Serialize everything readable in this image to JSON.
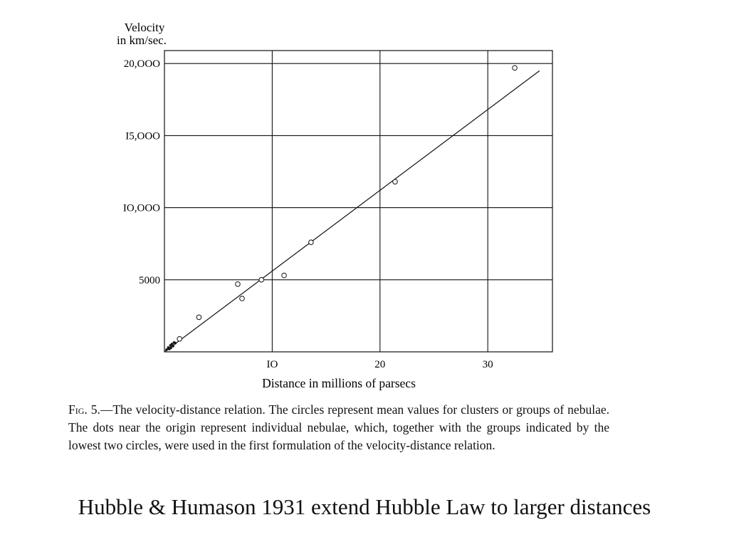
{
  "chart_data": {
    "type": "scatter",
    "ylabel_line1": "Velocity",
    "ylabel_line2": "in km/sec.",
    "xlabel": "Distance in millions of parsecs",
    "xlim": [
      0,
      36
    ],
    "ylim": [
      0,
      20900
    ],
    "x_ticks": [
      10,
      20,
      30
    ],
    "x_tick_labels": [
      "IO",
      "20",
      "30"
    ],
    "y_ticks": [
      5000,
      10000,
      15000,
      20000
    ],
    "y_tick_labels": [
      "5000",
      "IO,OOO",
      "I5,OOO",
      "20,OOO"
    ],
    "grid": true,
    "circles": [
      {
        "x": 1.4,
        "y": 900
      },
      {
        "x": 3.2,
        "y": 2400
      },
      {
        "x": 6.8,
        "y": 4700
      },
      {
        "x": 7.2,
        "y": 3700
      },
      {
        "x": 9.0,
        "y": 5000
      },
      {
        "x": 11.1,
        "y": 5300
      },
      {
        "x": 13.6,
        "y": 7600
      },
      {
        "x": 21.4,
        "y": 11800
      },
      {
        "x": 32.5,
        "y": 19700
      }
    ],
    "dots": [
      {
        "x": 0.2,
        "y": 150
      },
      {
        "x": 0.35,
        "y": 300
      },
      {
        "x": 0.45,
        "y": 200
      },
      {
        "x": 0.55,
        "y": 450
      },
      {
        "x": 0.6,
        "y": 280
      },
      {
        "x": 0.7,
        "y": 550
      },
      {
        "x": 0.8,
        "y": 400
      },
      {
        "x": 0.9,
        "y": 650
      },
      {
        "x": 1.0,
        "y": 600
      }
    ],
    "fit_line": {
      "x1": 0,
      "y1": 0,
      "x2": 34.8,
      "y2": 19500
    }
  },
  "caption": {
    "fig_label": "Fig. 5.",
    "text": "—The velocity-distance relation. The circles represent mean values for clusters or groups of nebulae. The dots near the origin represent individual nebulae, which, together with the groups indicated by the lowest two circles, were used in the first formulation of the velocity-distance relation."
  },
  "slide_title": "Hubble & Humason 1931 extend Hubble Law to larger distances"
}
